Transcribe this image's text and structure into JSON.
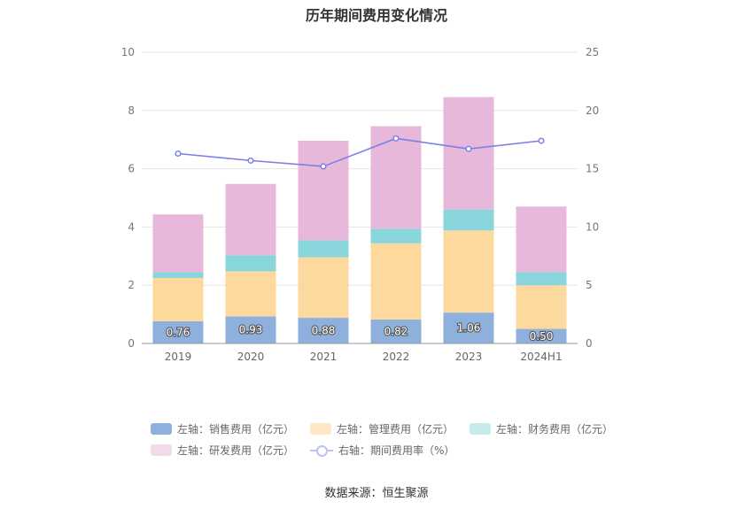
{
  "chart_data": {
    "type": "bar",
    "title": "历年期间费用变化情况",
    "categories": [
      "2019",
      "2020",
      "2021",
      "2022",
      "2023",
      "2024H1"
    ],
    "left_axis": {
      "min": 0,
      "max": 10,
      "ticks": [
        "0",
        "2",
        "4",
        "6",
        "8",
        "10"
      ]
    },
    "right_axis": {
      "min": 0,
      "max": 25,
      "ticks": [
        "0",
        "5",
        "10",
        "15",
        "20",
        "25"
      ]
    },
    "grid": true,
    "stacked": true,
    "series": [
      {
        "name": "左轴：销售费用（亿元）",
        "axis": "left",
        "color": "#8eb0dc",
        "values": [
          0.76,
          0.93,
          0.88,
          0.82,
          1.06,
          0.5
        ],
        "labels": [
          "0.76",
          "0.93",
          "0.88",
          "0.82",
          "1.06",
          "0.50"
        ]
      },
      {
        "name": "左轴：管理费用（亿元）",
        "axis": "left",
        "color": "#fdd99e",
        "values": [
          1.49,
          1.55,
          2.08,
          2.62,
          2.82,
          1.5
        ]
      },
      {
        "name": "左轴：财务费用（亿元）",
        "axis": "left",
        "color": "#88d6dc",
        "values": [
          0.2,
          0.55,
          0.58,
          0.5,
          0.72,
          0.45
        ]
      },
      {
        "name": "左轴：研发费用（亿元）",
        "axis": "left",
        "color": "#e7b8d9",
        "values": [
          1.98,
          2.45,
          3.42,
          3.52,
          3.86,
          2.25
        ]
      },
      {
        "name": "右轴：期间费用率（%）",
        "axis": "right",
        "type": "line",
        "color": "#7b7fe8",
        "values": [
          16.3,
          15.7,
          15.2,
          17.6,
          16.7,
          17.4
        ]
      }
    ],
    "legend_position": "bottom"
  },
  "legend": [
    {
      "label": "左轴：销售费用（亿元）",
      "color": "#8eb0dc",
      "kind": "bar"
    },
    {
      "label": "左轴：管理费用（亿元）",
      "color": "#fde7c5",
      "kind": "bar"
    },
    {
      "label": "左轴：财务费用（亿元）",
      "color": "#c4eaec",
      "kind": "bar"
    },
    {
      "label": "左轴：研发费用（亿元）",
      "color": "#f3dbec",
      "kind": "bar"
    },
    {
      "label": "右轴：期间费用率（%）",
      "color": "#bcc2f6",
      "kind": "line"
    }
  ],
  "source": "数据来源：恒生聚源"
}
